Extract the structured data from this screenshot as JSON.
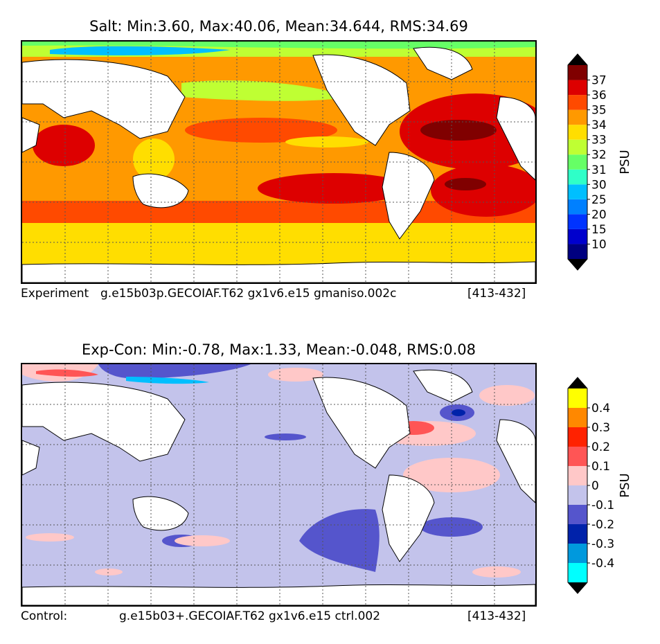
{
  "panels": {
    "top": {
      "title": "Salt: Min:3.60, Max:40.06, Mean:34.644, RMS:34.69",
      "footer_left": "Experiment",
      "footer_case": "g.e15b03p.GECOIAF.T62 gx1v6.e15 gmaniso.002c",
      "footer_years": "[413-432]"
    },
    "bottom": {
      "title": "Exp-Con: Min:-0.78, Max:1.33, Mean:-0.048, RMS:0.08",
      "footer_left": "Control:",
      "footer_case": "g.e15b03+.GECOIAF.T62 gx1v6.e15 ctrl.002",
      "footer_years": "[413-432]"
    }
  },
  "chart_data": [
    {
      "type": "heatmap",
      "title": "Salt: Min:3.60, Max:40.06, Mean:34.644, RMS:34.69",
      "variable": "Salt",
      "stats": {
        "min": 3.6,
        "max": 40.06,
        "mean": 34.644,
        "rms": 34.69
      },
      "colorbar": {
        "label": "PSU",
        "levels": [
          5,
          10,
          15,
          20,
          25,
          30,
          31,
          32,
          33,
          34,
          35,
          36,
          37,
          38
        ],
        "tick_labels": [
          "10",
          "15",
          "20",
          "25",
          "30",
          "31",
          "32",
          "33",
          "34",
          "35",
          "36",
          "37"
        ],
        "colors": [
          "#000080",
          "#0000cd",
          "#0033ff",
          "#0080ff",
          "#00bfff",
          "#2fffc8",
          "#66ff66",
          "#bfff33",
          "#ffde00",
          "#ff9900",
          "#ff4a00",
          "#dd0000",
          "#800000"
        ],
        "extend": "both",
        "under_color": "#000000",
        "over_color": "#000000"
      }
    },
    {
      "type": "heatmap",
      "title": "Exp-Con: Min:-0.78, Max:1.33, Mean:-0.048, RMS:0.08",
      "variable": "Exp-Con",
      "stats": {
        "min": -0.78,
        "max": 1.33,
        "mean": -0.048,
        "rms": 0.08
      },
      "colorbar": {
        "label": "PSU",
        "levels": [
          -0.5,
          -0.4,
          -0.3,
          -0.2,
          -0.1,
          0,
          0.1,
          0.2,
          0.3,
          0.4,
          0.5
        ],
        "tick_labels": [
          "-0.4",
          "-0.3",
          "-0.2",
          "-0.1",
          "0",
          "0.1",
          "0.2",
          "0.3",
          "0.4"
        ],
        "colors": [
          "#00ffff",
          "#0099dd",
          "#0022aa",
          "#5555cc",
          "#c3c3eb",
          "#ffc8c8",
          "#ff5555",
          "#ff2200",
          "#ff8800",
          "#ffff00"
        ],
        "extend": "both",
        "under_color": "#000000",
        "over_color": "#000000"
      }
    }
  ]
}
